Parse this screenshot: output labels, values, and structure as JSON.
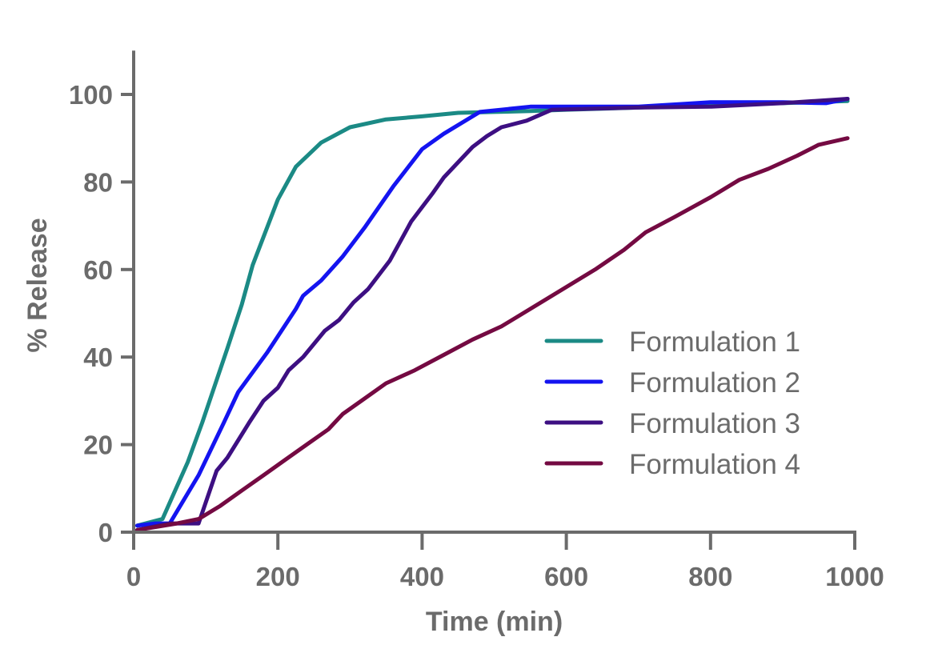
{
  "chart_data": {
    "type": "line",
    "title": "",
    "xlabel": "Time (min)",
    "ylabel": "% Release",
    "xlim": [
      0,
      1000
    ],
    "ylim": [
      0,
      110
    ],
    "xticks": [
      0,
      200,
      400,
      600,
      800,
      1000
    ],
    "yticks": [
      0,
      20,
      40,
      60,
      80,
      100
    ],
    "xtick_labels": [
      "0",
      "200",
      "400",
      "600",
      "800",
      "1000"
    ],
    "ytick_labels": [
      "0",
      "20",
      "40",
      "60",
      "80",
      "100"
    ],
    "grid": false,
    "legend_position": "bottom-right",
    "series": [
      {
        "name": "Formulation 1",
        "color": "#1b8a85",
        "x": [
          5,
          40,
          75,
          95,
          130,
          150,
          165,
          200,
          225,
          260,
          300,
          350,
          400,
          450,
          500,
          550,
          600,
          700,
          800,
          900,
          990
        ],
        "y": [
          1.5,
          3,
          16,
          25,
          42,
          52,
          61,
          76,
          83.5,
          89,
          92.5,
          94.3,
          95,
          95.8,
          96,
          96.2,
          96.5,
          97,
          97.8,
          98,
          98.5
        ]
      },
      {
        "name": "Formulation 2",
        "color": "#1414f0",
        "x": [
          5,
          30,
          50,
          90,
          125,
          145,
          185,
          225,
          235,
          260,
          290,
          320,
          360,
          400,
          430,
          480,
          550,
          600,
          700,
          800,
          900,
          960,
          990
        ],
        "y": [
          1.5,
          2,
          2,
          13,
          25,
          32,
          41,
          51,
          54,
          57.5,
          63,
          69.5,
          79,
          87.5,
          91,
          96,
          97.2,
          97.2,
          97.2,
          98.2,
          98.2,
          98,
          99
        ]
      },
      {
        "name": "Formulation 3",
        "color": "#3d0f82",
        "x": [
          5,
          50,
          90,
          115,
          130,
          160,
          180,
          200,
          215,
          235,
          265,
          285,
          305,
          325,
          355,
          385,
          415,
          430,
          470,
          490,
          510,
          545,
          580,
          700,
          800,
          900,
          990
        ],
        "y": [
          0.5,
          2,
          2,
          14,
          17,
          25,
          30,
          33,
          37,
          40,
          46,
          48.5,
          52.5,
          55.5,
          62,
          71,
          77.5,
          81,
          88,
          90.5,
          92.5,
          94,
          96.5,
          97,
          97.2,
          98,
          99
        ]
      },
      {
        "name": "Formulation 4",
        "color": "#740a42",
        "x": [
          5,
          60,
          90,
          120,
          150,
          180,
          210,
          240,
          270,
          290,
          320,
          350,
          390,
          430,
          470,
          510,
          550,
          590,
          640,
          680,
          710,
          750,
          800,
          840,
          880,
          920,
          950,
          990
        ],
        "y": [
          0.5,
          2,
          3,
          6,
          9.5,
          13,
          16.5,
          20,
          23.5,
          27,
          30.5,
          34,
          37,
          40.5,
          44,
          47,
          51,
          55,
          60,
          64.5,
          68.5,
          72,
          76.5,
          80.5,
          83,
          86,
          88.5,
          90
        ]
      }
    ]
  }
}
